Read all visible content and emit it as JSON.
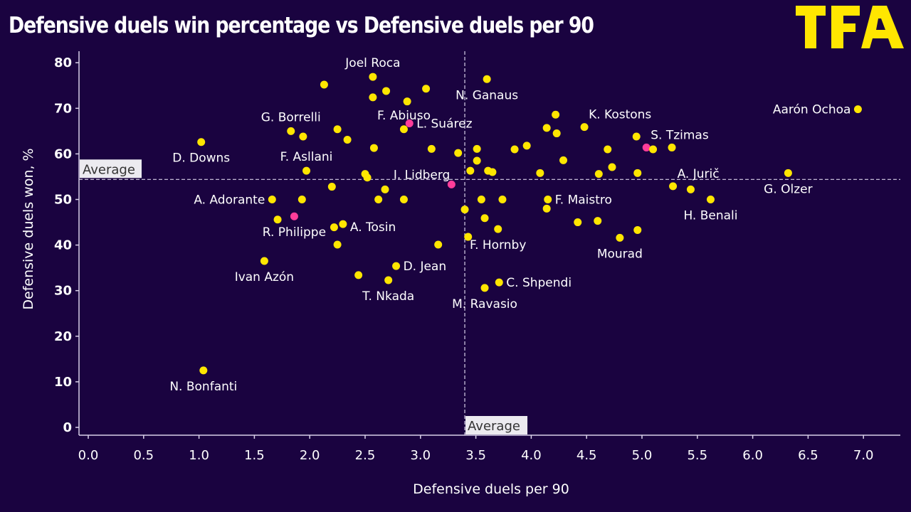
{
  "header": {
    "title": "Defensive duels win percentage vs Defensive duels per 90",
    "logo_text": "TFA",
    "logo_color": "#ffe600"
  },
  "colors": {
    "background": "#1a0340",
    "point_default": "#ffe600",
    "point_highlight": "#ff3d9a",
    "text": "#ffffff",
    "reference_line": "#d8d0e8"
  },
  "chart_data": {
    "type": "scatter",
    "title": "Defensive duels win percentage vs Defensive duels per 90",
    "xlabel": "Defensive duels per 90",
    "ylabel": "Defensive duels won, %",
    "xlim": [
      -0.05,
      7.4
    ],
    "ylim": [
      -1.5,
      82
    ],
    "x_ticks": [
      0.0,
      0.5,
      1.0,
      1.5,
      2.0,
      2.5,
      3.0,
      3.5,
      4.0,
      4.5,
      5.0,
      5.5,
      6.0,
      6.5,
      7.0
    ],
    "x_tick_labels": [
      "0.0",
      "0.5",
      "1.0",
      "1.5",
      "2.0",
      "2.5",
      "3.0",
      "3.5",
      "4.0",
      "4.5",
      "5.0",
      "5.5",
      "6.0",
      "6.5",
      "7.0"
    ],
    "y_ticks": [
      0,
      10,
      20,
      30,
      40,
      50,
      60,
      70,
      80
    ],
    "y_tick_labels": [
      "0",
      "10",
      "20",
      "30",
      "40",
      "50",
      "60",
      "70",
      "80"
    ],
    "grid": false,
    "reference_lines": {
      "x_average": 3.4,
      "y_average": 54.4,
      "label": "Average"
    },
    "points": [
      {
        "x": 1.04,
        "y": 12.5,
        "label": "N. Bonfanti",
        "highlight": false,
        "label_pos": "below"
      },
      {
        "x": 1.02,
        "y": 62.6,
        "label": "D. Downs",
        "highlight": false,
        "label_pos": "below"
      },
      {
        "x": 1.59,
        "y": 36.5,
        "label": "Ivan Azón",
        "highlight": false,
        "label_pos": "below"
      },
      {
        "x": 1.66,
        "y": 50.0,
        "label": "A. Adorante",
        "highlight": false,
        "label_pos": "left"
      },
      {
        "x": 1.71,
        "y": 45.6,
        "label": "",
        "highlight": false
      },
      {
        "x": 1.86,
        "y": 46.3,
        "label": "R. Philippe",
        "highlight": true,
        "label_pos": "below"
      },
      {
        "x": 1.93,
        "y": 50.0,
        "label": "",
        "highlight": false
      },
      {
        "x": 1.83,
        "y": 65.0,
        "label": "G. Borrelli",
        "highlight": false,
        "label_pos": "above"
      },
      {
        "x": 1.94,
        "y": 63.8,
        "label": "",
        "highlight": false
      },
      {
        "x": 1.97,
        "y": 56.3,
        "label": "F. Asllani",
        "highlight": false,
        "label_pos": "above"
      },
      {
        "x": 2.13,
        "y": 75.2,
        "label": "",
        "highlight": false
      },
      {
        "x": 2.2,
        "y": 52.8,
        "label": "",
        "highlight": false
      },
      {
        "x": 2.22,
        "y": 43.9,
        "label": "",
        "highlight": false
      },
      {
        "x": 2.25,
        "y": 40.1,
        "label": "",
        "highlight": false
      },
      {
        "x": 2.25,
        "y": 65.4,
        "label": "",
        "highlight": false
      },
      {
        "x": 2.3,
        "y": 44.6,
        "label": "A. Tosin",
        "highlight": false,
        "label_pos": "below-right"
      },
      {
        "x": 2.34,
        "y": 63.1,
        "label": "",
        "highlight": false
      },
      {
        "x": 2.44,
        "y": 33.4,
        "label": "",
        "highlight": false
      },
      {
        "x": 2.5,
        "y": 55.6,
        "label": "",
        "highlight": false
      },
      {
        "x": 2.52,
        "y": 54.8,
        "label": "",
        "highlight": false
      },
      {
        "x": 2.57,
        "y": 76.9,
        "label": "Joel Roca",
        "highlight": false,
        "label_pos": "above"
      },
      {
        "x": 2.57,
        "y": 72.4,
        "label": "",
        "highlight": false
      },
      {
        "x": 2.58,
        "y": 61.3,
        "label": "",
        "highlight": false
      },
      {
        "x": 2.62,
        "y": 50.0,
        "label": "",
        "highlight": false
      },
      {
        "x": 2.68,
        "y": 52.2,
        "label": "",
        "highlight": false
      },
      {
        "x": 2.69,
        "y": 73.8,
        "label": "",
        "highlight": false
      },
      {
        "x": 2.71,
        "y": 32.3,
        "label": "T. Nkada",
        "highlight": false,
        "label_pos": "below"
      },
      {
        "x": 2.78,
        "y": 35.4,
        "label": "D. Jean",
        "highlight": false,
        "label_pos": "right"
      },
      {
        "x": 2.85,
        "y": 50.0,
        "label": "",
        "highlight": false
      },
      {
        "x": 2.85,
        "y": 65.4,
        "label": "F. Abiuso",
        "highlight": false,
        "label_pos": "above"
      },
      {
        "x": 2.88,
        "y": 71.5,
        "label": "",
        "highlight": false
      },
      {
        "x": 2.9,
        "y": 66.7,
        "label": "L. Suárez",
        "highlight": true,
        "label_pos": "right"
      },
      {
        "x": 3.05,
        "y": 74.3,
        "label": "",
        "highlight": false
      },
      {
        "x": 3.1,
        "y": 61.1,
        "label": "",
        "highlight": false
      },
      {
        "x": 3.16,
        "y": 40.1,
        "label": "",
        "highlight": false
      },
      {
        "x": 3.28,
        "y": 53.3,
        "label": "I. Lidberg",
        "highlight": true,
        "label_pos": "above-left"
      },
      {
        "x": 3.34,
        "y": 60.2,
        "label": "",
        "highlight": false
      },
      {
        "x": 3.4,
        "y": 47.8,
        "label": "",
        "highlight": false
      },
      {
        "x": 3.43,
        "y": 41.8,
        "label": "",
        "highlight": false
      },
      {
        "x": 3.45,
        "y": 56.3,
        "label": "",
        "highlight": false
      },
      {
        "x": 3.51,
        "y": 61.1,
        "label": "",
        "highlight": false
      },
      {
        "x": 3.51,
        "y": 58.5,
        "label": "",
        "highlight": false
      },
      {
        "x": 3.55,
        "y": 50.0,
        "label": "",
        "highlight": false
      },
      {
        "x": 3.58,
        "y": 30.6,
        "label": "M. Ravasio",
        "highlight": false,
        "label_pos": "below"
      },
      {
        "x": 3.58,
        "y": 45.9,
        "label": "",
        "highlight": false
      },
      {
        "x": 3.6,
        "y": 76.4,
        "label": "N. Ganaus",
        "highlight": false,
        "label_pos": "below"
      },
      {
        "x": 3.61,
        "y": 56.3,
        "label": "",
        "highlight": false
      },
      {
        "x": 3.65,
        "y": 56.0,
        "label": "",
        "highlight": false
      },
      {
        "x": 3.7,
        "y": 43.5,
        "label": "F. Hornby",
        "highlight": false,
        "label_pos": "below"
      },
      {
        "x": 3.71,
        "y": 31.8,
        "label": "C. Shpendi",
        "highlight": false,
        "label_pos": "right"
      },
      {
        "x": 3.74,
        "y": 50.0,
        "label": "",
        "highlight": false
      },
      {
        "x": 3.85,
        "y": 61.0,
        "label": "",
        "highlight": false
      },
      {
        "x": 3.96,
        "y": 61.8,
        "label": "",
        "highlight": false
      },
      {
        "x": 4.08,
        "y": 55.8,
        "label": "",
        "highlight": false
      },
      {
        "x": 4.14,
        "y": 48.0,
        "label": "",
        "highlight": false
      },
      {
        "x": 4.14,
        "y": 65.7,
        "label": "",
        "highlight": false
      },
      {
        "x": 4.15,
        "y": 50.0,
        "label": "F. Maistro",
        "highlight": false,
        "label_pos": "right"
      },
      {
        "x": 4.22,
        "y": 68.6,
        "label": "",
        "highlight": false
      },
      {
        "x": 4.23,
        "y": 64.5,
        "label": "",
        "highlight": false
      },
      {
        "x": 4.29,
        "y": 58.6,
        "label": "",
        "highlight": false
      },
      {
        "x": 4.42,
        "y": 45.0,
        "label": "",
        "highlight": false
      },
      {
        "x": 4.48,
        "y": 65.9,
        "label": "K. Kostons",
        "highlight": false,
        "label_pos": "above-right"
      },
      {
        "x": 4.6,
        "y": 45.3,
        "label": "",
        "highlight": false
      },
      {
        "x": 4.61,
        "y": 55.6,
        "label": "",
        "highlight": false
      },
      {
        "x": 4.69,
        "y": 61.0,
        "label": "",
        "highlight": false
      },
      {
        "x": 4.73,
        "y": 57.1,
        "label": "",
        "highlight": false
      },
      {
        "x": 4.8,
        "y": 41.6,
        "label": "Mourad",
        "highlight": false,
        "label_pos": "below"
      },
      {
        "x": 4.95,
        "y": 63.8,
        "label": "",
        "highlight": false
      },
      {
        "x": 4.96,
        "y": 43.3,
        "label": "",
        "highlight": false
      },
      {
        "x": 4.96,
        "y": 55.8,
        "label": "",
        "highlight": false
      },
      {
        "x": 5.04,
        "y": 61.4,
        "label": "S. Tzimas",
        "highlight": true,
        "label_pos": "above-right"
      },
      {
        "x": 5.1,
        "y": 61.0,
        "label": "",
        "highlight": false
      },
      {
        "x": 5.27,
        "y": 61.4,
        "label": "",
        "highlight": false
      },
      {
        "x": 5.28,
        "y": 52.9,
        "label": "A. Jurič",
        "highlight": false,
        "label_pos": "above-right"
      },
      {
        "x": 5.44,
        "y": 52.2,
        "label": "",
        "highlight": false
      },
      {
        "x": 5.62,
        "y": 50.0,
        "label": "H. Benali",
        "highlight": false,
        "label_pos": "below"
      },
      {
        "x": 6.32,
        "y": 55.8,
        "label": "G. Olzer",
        "highlight": false,
        "label_pos": "below"
      },
      {
        "x": 6.95,
        "y": 69.8,
        "label": "Aarón Ochoa",
        "highlight": false,
        "label_pos": "left"
      }
    ]
  }
}
